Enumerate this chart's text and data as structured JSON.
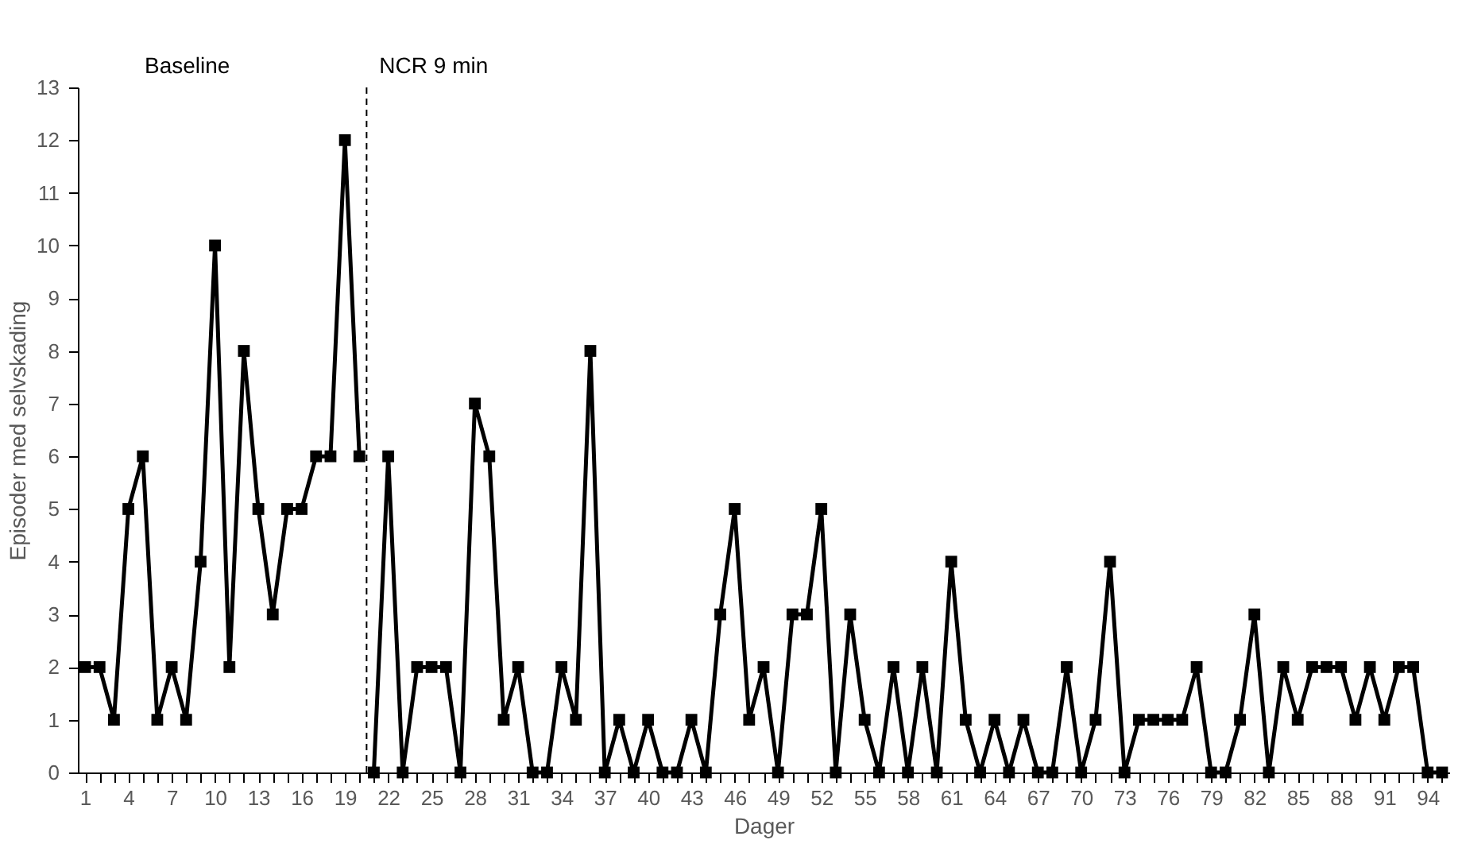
{
  "chart_data": {
    "type": "line",
    "xlabel": "Dager",
    "ylabel": "Episoder med selvskading",
    "annotations": [
      "Baseline",
      "NCR 9 min"
    ],
    "series": [
      {
        "color": "#000000",
        "x": [
          1,
          2,
          3,
          4,
          5,
          6,
          7,
          8,
          9,
          10,
          11,
          12,
          13,
          14,
          15,
          16,
          17,
          18,
          19,
          20
        ],
        "values": [
          2,
          2,
          1,
          5,
          6,
          1,
          2,
          1,
          4,
          10,
          2,
          8,
          5,
          3,
          5,
          5,
          6,
          6,
          12,
          6
        ]
      },
      {
        "color": "#000000",
        "x": [
          21,
          22,
          23,
          24,
          25,
          26,
          27,
          28,
          29,
          30,
          31,
          32,
          33,
          34,
          35,
          36,
          37,
          38,
          39,
          40,
          41,
          42,
          43,
          44,
          45,
          46,
          47,
          48,
          49,
          50,
          51,
          52,
          53,
          54,
          55,
          56,
          57,
          58,
          59,
          60,
          61,
          62,
          63,
          64,
          65,
          66,
          67,
          68,
          69,
          70,
          71,
          72,
          73,
          74,
          75,
          76,
          77,
          78,
          79,
          80,
          81,
          82,
          83,
          84,
          85,
          86,
          87,
          88,
          89,
          90,
          91,
          92,
          93,
          94,
          95
        ],
        "values": [
          0,
          6,
          0,
          2,
          2,
          2,
          0,
          7,
          6,
          1,
          2,
          0,
          0,
          2,
          1,
          8,
          0,
          1,
          0,
          1,
          0,
          0,
          1,
          0,
          3,
          5,
          1,
          2,
          0,
          3,
          3,
          5,
          0,
          3,
          1,
          0,
          2,
          0,
          2,
          0,
          4,
          1,
          0,
          1,
          0,
          1,
          0,
          0,
          2,
          0,
          1,
          4,
          0,
          1,
          1,
          1,
          1,
          2,
          0,
          0,
          1,
          3,
          0,
          2,
          1,
          2,
          2,
          2,
          1,
          2,
          1,
          2,
          2,
          0,
          0
        ]
      }
    ],
    "ref_lines": [
      {
        "axis": "x",
        "value": 20.5,
        "color": "#000000",
        "line_style": "dashed"
      }
    ],
    "xlim": [
      0.5,
      95.5
    ],
    "xticks": [
      1,
      {
        "value": 2,
        "label": null
      },
      {
        "value": 3,
        "label": null
      },
      4,
      {
        "value": 5,
        "label": null
      },
      {
        "value": 6,
        "label": null
      },
      7,
      {
        "value": 8,
        "label": null
      },
      {
        "value": 9,
        "label": null
      },
      10,
      {
        "value": 11,
        "label": null
      },
      {
        "value": 12,
        "label": null
      },
      13,
      {
        "value": 14,
        "label": null
      },
      {
        "value": 15,
        "label": null
      },
      16,
      {
        "value": 17,
        "label": null
      },
      {
        "value": 18,
        "label": null
      },
      19,
      {
        "value": 20,
        "label": null
      },
      {
        "value": 21,
        "label": null
      },
      22,
      {
        "value": 23,
        "label": null
      },
      {
        "value": 24,
        "label": null
      },
      25,
      {
        "value": 26,
        "label": null
      },
      {
        "value": 27,
        "label": null
      },
      28,
      {
        "value": 29,
        "label": null
      },
      {
        "value": 30,
        "label": null
      },
      31,
      {
        "value": 32,
        "label": null
      },
      {
        "value": 33,
        "label": null
      },
      34,
      {
        "value": 35,
        "label": null
      },
      {
        "value": 36,
        "label": null
      },
      37,
      {
        "value": 38,
        "label": null
      },
      {
        "value": 39,
        "label": null
      },
      40,
      {
        "value": 41,
        "label": null
      },
      {
        "value": 42,
        "label": null
      },
      43,
      {
        "value": 44,
        "label": null
      },
      {
        "value": 45,
        "label": null
      },
      46,
      {
        "value": 47,
        "label": null
      },
      {
        "value": 48,
        "label": null
      },
      49,
      {
        "value": 50,
        "label": null
      },
      {
        "value": 51,
        "label": null
      },
      52,
      {
        "value": 53,
        "label": null
      },
      {
        "value": 54,
        "label": null
      },
      55,
      {
        "value": 56,
        "label": null
      },
      {
        "value": 57,
        "label": null
      },
      58,
      {
        "value": 59,
        "label": null
      },
      {
        "value": 60,
        "label": null
      },
      61,
      {
        "value": 62,
        "label": null
      },
      {
        "value": 63,
        "label": null
      },
      64,
      {
        "value": 65,
        "label": null
      },
      {
        "value": 66,
        "label": null
      },
      67,
      {
        "value": 68,
        "label": null
      },
      {
        "value": 69,
        "label": null
      },
      70,
      {
        "value": 71,
        "label": null
      },
      {
        "value": 72,
        "label": null
      },
      73,
      {
        "value": 74,
        "label": null
      },
      {
        "value": 75,
        "label": null
      },
      76,
      {
        "value": 77,
        "label": null
      },
      {
        "value": 78,
        "label": null
      },
      79,
      {
        "value": 80,
        "label": null
      },
      {
        "value": 81,
        "label": null
      },
      82,
      {
        "value": 83,
        "label": null
      },
      {
        "value": 84,
        "label": null
      },
      85,
      {
        "value": 86,
        "label": null
      },
      {
        "value": 87,
        "label": null
      },
      88,
      {
        "value": 89,
        "label": null
      },
      {
        "value": 90,
        "label": null
      },
      91,
      {
        "value": 92,
        "label": null
      },
      {
        "value": 93,
        "label": null
      },
      94,
      {
        "value": 95,
        "label": null
      }
    ],
    "ylim": [
      0,
      13
    ],
    "yticks": [
      0,
      1,
      2,
      3,
      4,
      5,
      6,
      7,
      8,
      9,
      10,
      11,
      12,
      13
    ],
    "grid": false,
    "marker": "square",
    "line_style": "solid"
  }
}
